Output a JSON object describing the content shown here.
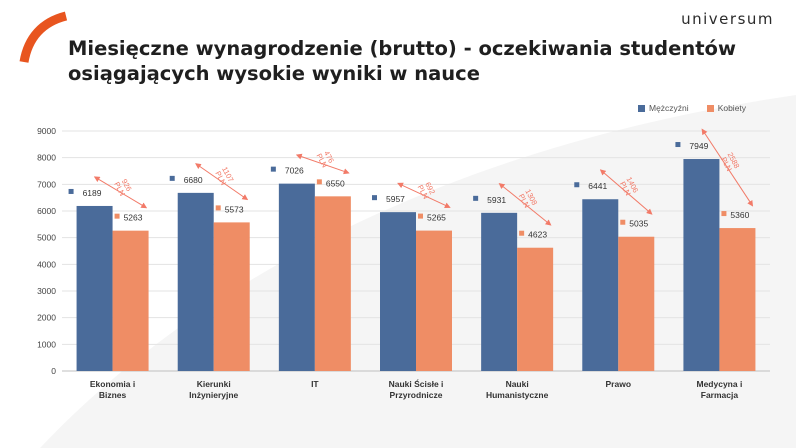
{
  "header": {
    "brand": "universum",
    "title_line1": "Miesięczne wynagrodzenie (brutto) - oczekiwania studentów",
    "title_line2": "osiągających wysokie wyniki w nauce"
  },
  "colors": {
    "men": "#4a6b9a",
    "women": "#ef8d65",
    "accent": "#e8551f",
    "diff": "#f27a68"
  },
  "chart_data": {
    "type": "bar",
    "title": "Miesięczne wynagrodzenie (brutto) - oczekiwania studentów osiągających wysokie wyniki w nauce",
    "xlabel": "",
    "ylabel": "",
    "ylim": [
      0,
      9000
    ],
    "yticks": [
      "0",
      "1000",
      "2000",
      "3000",
      "4000",
      "5000",
      "6000",
      "7000",
      "8000",
      "9000"
    ],
    "grid": true,
    "legend_position": "top-right",
    "categories": [
      [
        "Ekonomia i",
        "Biznes"
      ],
      [
        "Kierunki",
        "Inżynieryjne"
      ],
      [
        "IT"
      ],
      [
        "Nauki Ścisłe i",
        "Przyrodnicze"
      ],
      [
        "Nauki",
        "Humanistyczne"
      ],
      [
        "Prawo"
      ],
      [
        "Medycyna i",
        "Farmacja"
      ]
    ],
    "series": [
      {
        "name": "Mężczyźni",
        "values": [
          6189,
          6680,
          7026,
          5957,
          5931,
          6441,
          7949
        ]
      },
      {
        "name": "Kobiety",
        "values": [
          5263,
          5573,
          6550,
          5265,
          4623,
          5035,
          5360
        ]
      }
    ],
    "annotations": [
      [
        "926",
        "PLN"
      ],
      [
        "1107",
        "PLN"
      ],
      [
        "476",
        "PLN"
      ],
      [
        "692",
        "PLN"
      ],
      [
        "1308",
        "PLN"
      ],
      [
        "1406",
        "PLN"
      ],
      [
        "2588",
        "PLN"
      ]
    ]
  }
}
